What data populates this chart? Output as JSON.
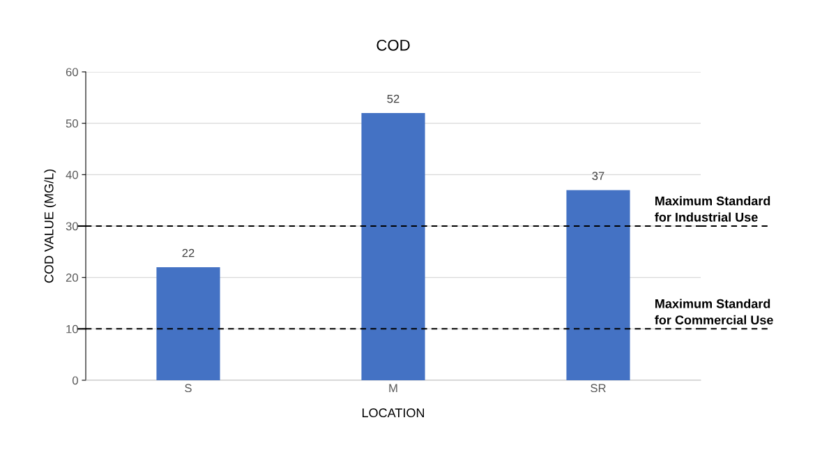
{
  "chart_data": {
    "type": "bar",
    "title": "COD",
    "xlabel": "LOCATION",
    "ylabel": "COD VALUE (MG/L)",
    "categories": [
      "S",
      "M",
      "SR"
    ],
    "values": [
      22,
      52,
      37
    ],
    "color": "#4472c4",
    "ylim": [
      0,
      60
    ],
    "yticks": [
      0,
      10,
      20,
      30,
      40,
      50,
      60
    ],
    "grid": "y",
    "data_labels": true,
    "legend": false,
    "ref_lines": [
      {
        "axis": "y",
        "value": 30,
        "label": "Maximum Standard\nfor Industrial Use",
        "color": "#000000",
        "line_style": "dashed"
      },
      {
        "axis": "y",
        "value": 10,
        "label": "Maximum Standard\nfor Commercial Use",
        "color": "#000000",
        "line_style": "dashed"
      }
    ]
  }
}
